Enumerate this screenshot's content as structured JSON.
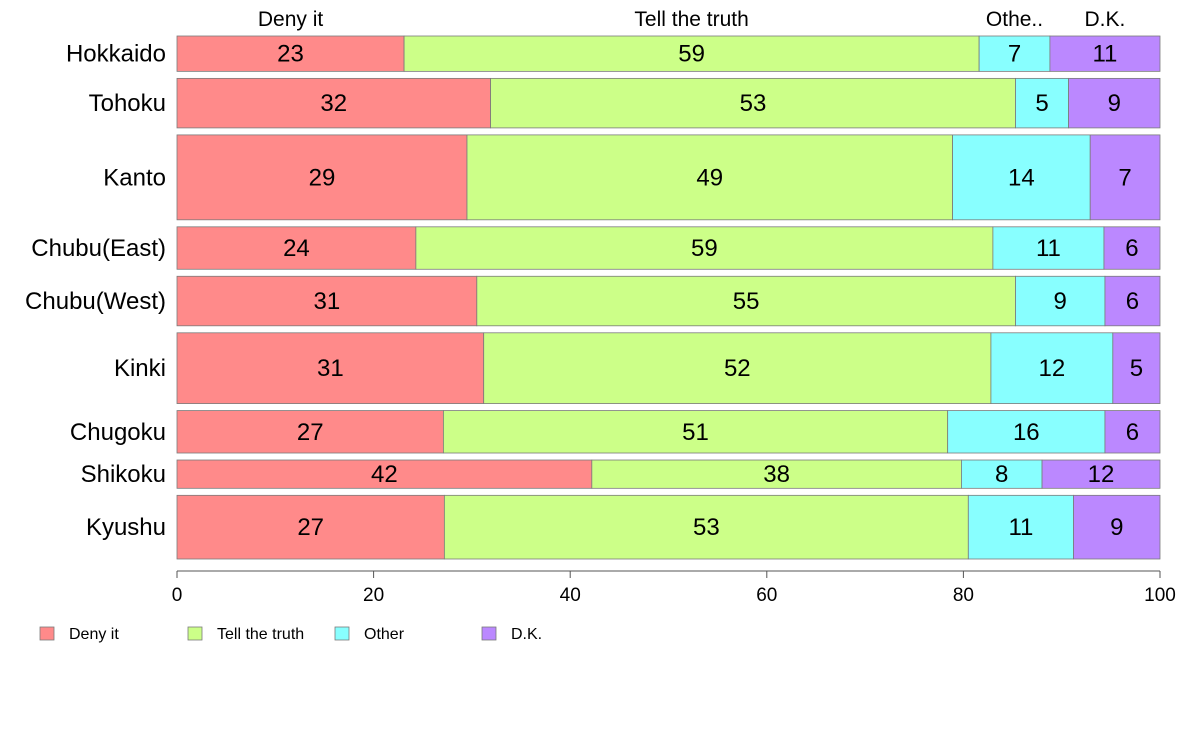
{
  "chart_data": {
    "type": "bar",
    "orientation": "horizontal",
    "stacked": true,
    "categories": [
      "Hokkaido",
      "Tohoku",
      "Kanto",
      "Chubu(East)",
      "Chubu(West)",
      "Kinki",
      "Chugoku",
      "Shikoku",
      "Kyushu"
    ],
    "series": [
      {
        "name": "Deny it",
        "color": "#ff8a8a",
        "values": [
          23,
          32,
          29,
          24,
          31,
          31,
          27,
          42,
          27
        ],
        "display": [
          23.1,
          31.9,
          29.5,
          24.3,
          30.5,
          31.2,
          27.1,
          42.2,
          27.2
        ]
      },
      {
        "name": "Tell the truth",
        "color": "#ccff88",
        "values": [
          59,
          53,
          49,
          59,
          55,
          52,
          51,
          38,
          53
        ],
        "display": [
          58.5,
          53.4,
          49.4,
          58.7,
          54.8,
          51.6,
          51.3,
          37.6,
          53.3
        ]
      },
      {
        "name": "Other",
        "color": "#88ffff",
        "values": [
          7,
          5,
          14,
          11,
          9,
          12,
          16,
          8,
          11
        ],
        "display": [
          7.2,
          5.4,
          14.0,
          11.3,
          9.1,
          12.4,
          16.0,
          8.2,
          10.7
        ]
      },
      {
        "name": "D.K.",
        "color": "#bb88ff",
        "values": [
          11,
          9,
          7,
          6,
          6,
          5,
          6,
          12,
          9
        ],
        "display": [
          11.2,
          9.3,
          7.1,
          5.7,
          5.6,
          4.8,
          5.6,
          12.0,
          8.8
        ]
      }
    ],
    "top_labels": [
      "Deny it",
      "Tell the truth",
      "Othe..",
      "D.K."
    ],
    "xlim": [
      0,
      100
    ],
    "xticks": [
      0,
      20,
      40,
      60,
      80,
      100
    ],
    "bar_weights": [
      5,
      7,
      12,
      6,
      7,
      10,
      6,
      4,
      9
    ],
    "grid": false,
    "legend_position": "bottom-left"
  }
}
